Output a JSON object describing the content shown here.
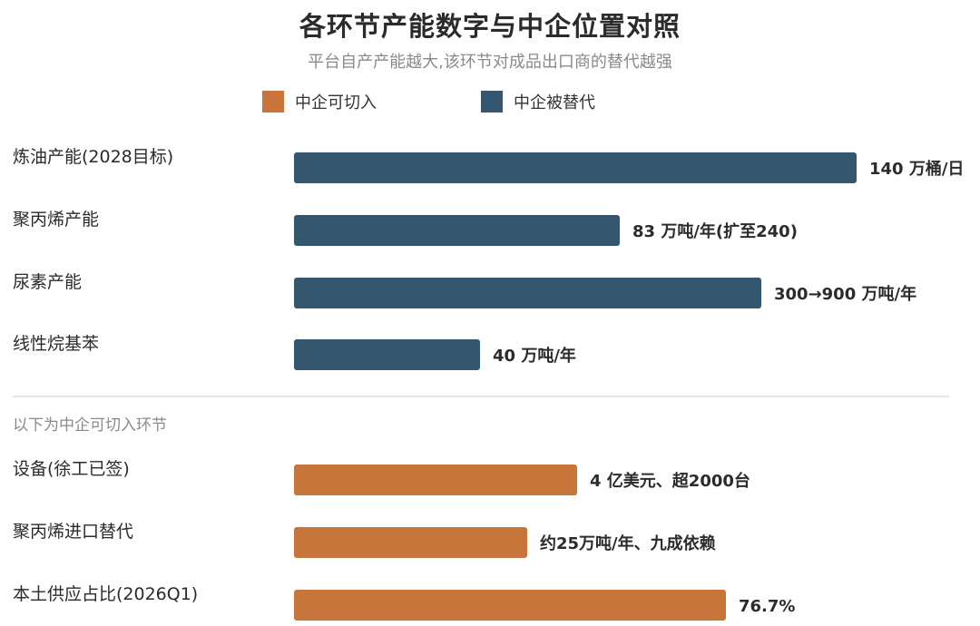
{
  "title": "各环节产能数字与中企位置对照",
  "subtitle": "平台自产产能越大,该环节对成品出口商的替代越强",
  "colors": {
    "replaced": "#34566f",
    "cut_in": "#c8753b",
    "divider": "#dddddd",
    "section_text": "#8a8a8a"
  },
  "legend": [
    {
      "label": "中企可切入",
      "color": "#c8753b"
    },
    {
      "label": "中企被替代",
      "color": "#34566f"
    }
  ],
  "section_label": "以下为中企可切入环节",
  "chart_data": {
    "type": "bar",
    "orientation": "horizontal",
    "note": "bar lengths are illustrative per row (mixed units); values as labeled",
    "rows": [
      {
        "category": "炼油产能(2028目标)",
        "value_label": "140 万桶/日",
        "group": "中企被替代",
        "relative_length": 1.0
      },
      {
        "category": "聚丙烯产能",
        "value_label": "83 万吨/年(扩至240)",
        "group": "中企被替代",
        "relative_length": 0.579
      },
      {
        "category": "尿素产能",
        "value_label": "300→900 万吨/年",
        "group": "中企被替代",
        "relative_length": 0.831
      },
      {
        "category": "线性烷基苯",
        "value_label": "40 万吨/年",
        "group": "中企被替代",
        "relative_length": 0.331
      },
      {
        "category": "设备(徐工已签)",
        "value_label": "4 亿美元、超2000台",
        "group": "中企可切入",
        "relative_length": 0.503
      },
      {
        "category": "聚丙烯进口替代",
        "value_label": "约25万吨/年、九成依赖",
        "group": "中企可切入",
        "relative_length": 0.415
      },
      {
        "category": "本土供应占比(2026Q1)",
        "value_label": "76.7%",
        "group": "中企可切入",
        "relative_length": 0.767
      }
    ]
  }
}
